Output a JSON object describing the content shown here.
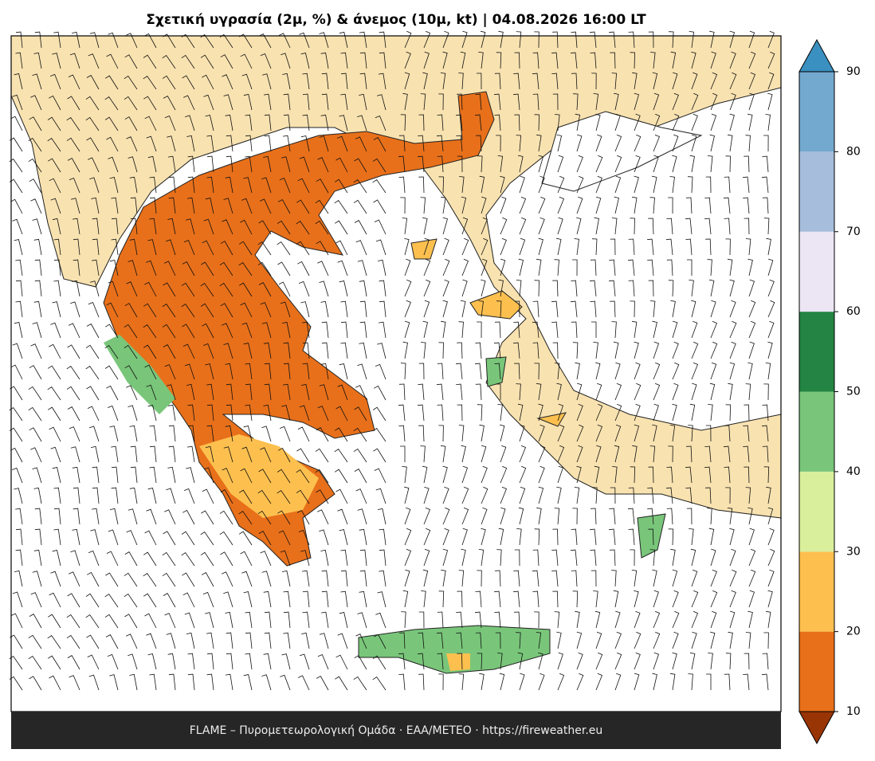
{
  "title": "Σχετική υγρασία (2μ, %) & άνεμος (10μ, kt)  |  04.08.2026 16:00 LT",
  "footer": "FLAME – Πυρομετεωρολογική Ομάδα · ΕΑΑ/METEO · https://fireweather.eu",
  "colorbar": {
    "ticks": [
      10,
      20,
      30,
      40,
      50,
      60,
      70,
      80,
      90
    ],
    "colors": [
      "#e8701a",
      "#fdc04f",
      "#d9ef9c",
      "#79c67a",
      "#238443",
      "#ece5f4",
      "#a6bddb",
      "#74a9cf"
    ],
    "under_color": "#993404",
    "over_color": "#3a90c0"
  }
}
